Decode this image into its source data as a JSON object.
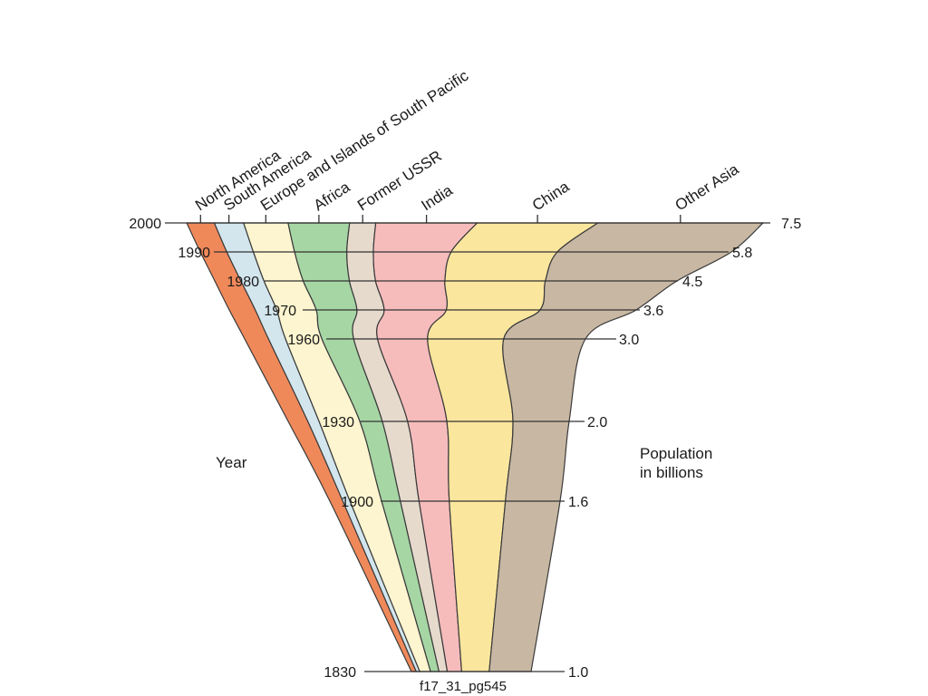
{
  "chart_data": {
    "type": "area",
    "caption": "f17_31_pg545",
    "y_axis_title": "Year",
    "population_axis_title_line1": "Population",
    "population_axis_title_line2": "in billions",
    "years": [
      {
        "year": "2000",
        "population": "7.5"
      },
      {
        "year": "1990",
        "population": "5.8"
      },
      {
        "year": "1980",
        "population": "4.5"
      },
      {
        "year": "1970",
        "population": "3.6"
      },
      {
        "year": "1960",
        "population": "3.0"
      },
      {
        "year": "1930",
        "population": "2.0"
      },
      {
        "year": "1900",
        "population": "1.6"
      },
      {
        "year": "1830",
        "population": "1.0"
      }
    ],
    "regions": [
      {
        "name": "North America",
        "color": "#f0895a",
        "values": [
          0.36,
          0.29,
          0.26,
          0.23,
          0.21,
          0.14,
          0.09,
          0.04
        ]
      },
      {
        "name": "South America",
        "color": "#d3e6ee",
        "values": [
          0.38,
          0.29,
          0.23,
          0.19,
          0.15,
          0.08,
          0.05,
          0.03
        ]
      },
      {
        "name": "Europe and Islands of South Pacific",
        "color": "#fdf5cf",
        "values": [
          0.58,
          0.45,
          0.39,
          0.35,
          0.32,
          0.29,
          0.22,
          0.09
        ]
      },
      {
        "name": "Africa",
        "color": "#a6d6a4",
        "values": [
          0.8,
          0.57,
          0.46,
          0.36,
          0.28,
          0.16,
          0.13,
          0.07
        ]
      },
      {
        "name": "Former USSR",
        "color": "#e6dacd",
        "values": [
          0.34,
          0.29,
          0.26,
          0.24,
          0.21,
          0.18,
          0.13,
          0.07
        ]
      },
      {
        "name": "India",
        "color": "#f6bcbc",
        "values": [
          1.32,
          0.85,
          0.69,
          0.55,
          0.44,
          0.28,
          0.21,
          0.12
        ]
      },
      {
        "name": "China",
        "color": "#fbe69e",
        "values": [
          1.57,
          1.16,
          1.0,
          0.83,
          0.67,
          0.47,
          0.39,
          0.23
        ]
      },
      {
        "name": "Other Asia",
        "color": "#c8b8a3",
        "values": [
          2.15,
          1.9,
          1.31,
          0.85,
          0.72,
          0.4,
          0.38,
          0.35
        ]
      }
    ]
  }
}
